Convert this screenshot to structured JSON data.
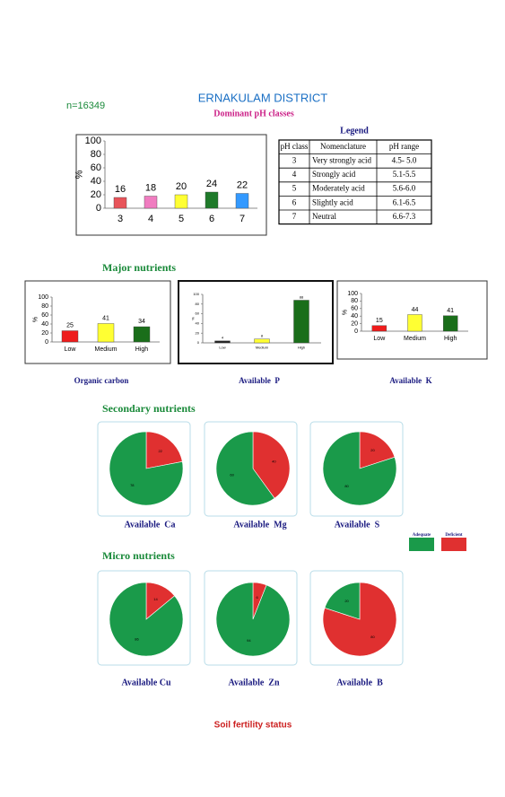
{
  "header": {
    "sample_size": "n=16349",
    "title": "ERNAKULAM DISTRICT",
    "subtitle": "Dominant pH classes"
  },
  "legend_table": {
    "title": "Legend",
    "columns": [
      "pH class",
      "Nomenclature",
      "pH range"
    ],
    "rows": [
      [
        "3",
        "Very strongly acid",
        "4.5- 5.0"
      ],
      [
        "4",
        "Strongly acid",
        "5.1-5.5"
      ],
      [
        "5",
        "Moderately acid",
        "5.6-6.0"
      ],
      [
        "6",
        "Slightly acid",
        "6.1-6.5"
      ],
      [
        "7",
        "Neutral",
        "6.6-7.3"
      ]
    ]
  },
  "sections": {
    "major": "Major nutrients",
    "secondary": "Secondary nutrients",
    "micro": "Micro nutrients",
    "footer": "Soil fertility status"
  },
  "pie_legend": [
    {
      "name": "Adequate",
      "color": "#1a9a4a"
    },
    {
      "name": "Deficient",
      "color": "#e03030"
    }
  ],
  "chart_data": [
    {
      "type": "bar",
      "ylabel": "%",
      "categories": [
        "3",
        "4",
        "5",
        "6",
        "7"
      ],
      "values": [
        16,
        18,
        20,
        24,
        22
      ],
      "colors": [
        "#e8545a",
        "#f07cc0",
        "#ffff33",
        "#1f7a2a",
        "#3399ff"
      ],
      "ylim": [
        0,
        100
      ],
      "yticks": [
        0,
        20,
        40,
        60,
        80,
        100
      ]
    },
    {
      "type": "bar",
      "title": "Organic carbon",
      "ylabel": "%",
      "categories": [
        "Low",
        "Medium",
        "High"
      ],
      "values": [
        25,
        41,
        34
      ],
      "colors": [
        "#ee1c1c",
        "#ffff33",
        "#1a6e1a"
      ],
      "ylim": [
        0,
        100
      ],
      "yticks": [
        0,
        20,
        40,
        60,
        80,
        100
      ]
    },
    {
      "type": "bar",
      "title": "Available  P",
      "ylabel": "%",
      "categories": [
        "Low",
        "Medium",
        "High"
      ],
      "values": [
        4,
        8,
        88
      ],
      "colors": [
        "#222222",
        "#ffff33",
        "#1a6e1a"
      ],
      "ylim": [
        0,
        100
      ],
      "yticks": [
        0,
        20,
        40,
        60,
        80,
        100
      ]
    },
    {
      "type": "bar",
      "title": "Available  K",
      "ylabel": "%",
      "categories": [
        "Low",
        "Medium",
        "High"
      ],
      "values": [
        15,
        44,
        41
      ],
      "colors": [
        "#ee1c1c",
        "#ffff33",
        "#1a6e1a"
      ],
      "ylim": [
        0,
        100
      ],
      "yticks": [
        0,
        20,
        40,
        60,
        80,
        100
      ]
    },
    {
      "type": "pie",
      "title": "Available  Ca",
      "values": [
        78,
        22
      ]
    },
    {
      "type": "pie",
      "title": "Available  Mg",
      "values": [
        60,
        40
      ]
    },
    {
      "type": "pie",
      "title": "Available  S",
      "values": [
        80,
        20
      ]
    },
    {
      "type": "pie",
      "title": "Available Cu",
      "values": [
        86,
        14
      ]
    },
    {
      "type": "pie",
      "title": "Available  Zn",
      "values": [
        94,
        6
      ]
    },
    {
      "type": "pie",
      "title": "Available  B",
      "values": [
        20,
        80
      ]
    }
  ]
}
